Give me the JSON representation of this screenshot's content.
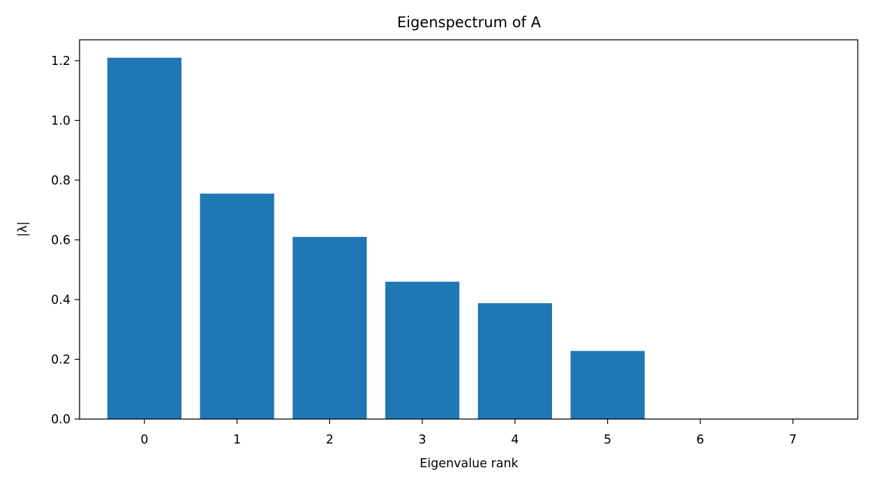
{
  "chart_data": {
    "type": "bar",
    "title": "Eigenspectrum of A",
    "xlabel": "Eigenvalue rank",
    "ylabel": "|λ|",
    "categories": [
      "0",
      "1",
      "2",
      "3",
      "4",
      "5",
      "6",
      "7"
    ],
    "values": [
      1.21,
      0.755,
      0.61,
      0.46,
      0.388,
      0.228,
      0.0,
      0.0
    ],
    "xlim": [
      -0.7,
      7.7
    ],
    "ylim": [
      0,
      1.27
    ],
    "yticks": [
      "0.0",
      "0.2",
      "0.4",
      "0.6",
      "0.8",
      "1.0",
      "1.2"
    ],
    "grid": false,
    "bar_color": "#1f77b4"
  }
}
